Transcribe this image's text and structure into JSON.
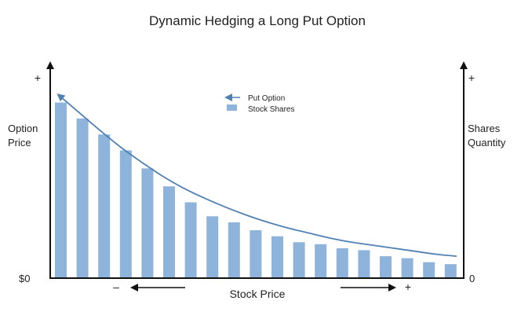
{
  "chart_data": {
    "type": "bar",
    "title": "Dynamic Hedging a Long Put Option",
    "xlabel": "Stock Price",
    "x_minus": "–",
    "x_plus": "+",
    "y_left_label_line1": "Option",
    "y_left_label_line2": "Price",
    "y_left_top": "+",
    "y_left_bottom": "$0",
    "y_right_label_line1": "Shares",
    "y_right_label_line2": "Quantity",
    "y_right_top": "+",
    "y_right_bottom": "0",
    "ylim": [
      0,
      100
    ],
    "legend": {
      "placement": "top-center",
      "line_label": "Put Option",
      "bar_label": "Stock Shares"
    },
    "series": [
      {
        "name": "Stock Shares",
        "values": [
          88,
          80,
          72,
          64,
          55,
          46,
          38,
          31,
          28,
          24,
          21,
          18,
          17,
          15,
          14,
          11,
          10,
          8,
          7
        ]
      },
      {
        "name": "Put Option",
        "values": [
          92,
          83,
          74,
          65.5,
          58,
          51,
          45,
          40,
          35.5,
          31.5,
          28,
          25,
          22.5,
          20,
          18,
          16.5,
          15,
          13.5,
          12,
          11
        ]
      }
    ],
    "colors": {
      "bar": "#8eb4dc",
      "line": "#4f81b4",
      "axis": "#111111",
      "arrow": "#111111"
    }
  }
}
